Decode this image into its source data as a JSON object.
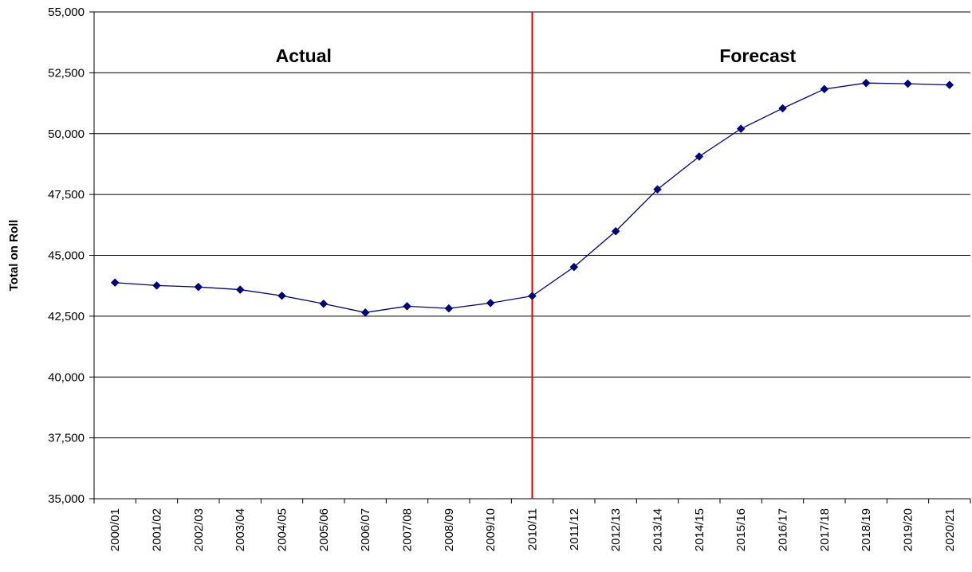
{
  "chart_data": {
    "type": "line",
    "title": "",
    "xlabel": "",
    "ylabel": "Total on Roll",
    "ylim": [
      35000,
      55000
    ],
    "yticks": [
      35000,
      37500,
      40000,
      42500,
      45000,
      47500,
      50000,
      52500,
      55000
    ],
    "ytick_labels": [
      "35,000",
      "37,500",
      "40,000",
      "42,500",
      "45,000",
      "47,500",
      "50,000",
      "52,500",
      "55,000"
    ],
    "categories": [
      "2000/01",
      "2001/02",
      "2002/03",
      "2003/04",
      "2004/05",
      "2005/06",
      "2006/07",
      "2007/08",
      "2008/09",
      "2009/10",
      "2010/11",
      "2011/12",
      "2012/13",
      "2013/14",
      "2014/15",
      "2015/16",
      "2016/17",
      "2017/18",
      "2018/19",
      "2019/20",
      "2020/21"
    ],
    "series": [
      {
        "values": [
          43880,
          43760,
          43700,
          43590,
          43340,
          43010,
          42650,
          42910,
          42820,
          43040,
          43330,
          44520,
          45990,
          47710,
          49060,
          50200,
          51040,
          51830,
          52080,
          52050,
          52000
        ],
        "color": "#000080",
        "marker": "diamond"
      }
    ],
    "divider": {
      "category": "2010/11",
      "color": "#e00000"
    },
    "region_labels": {
      "left": "Actual",
      "right": "Forecast"
    },
    "grid": "horizontal",
    "legend": "none"
  }
}
